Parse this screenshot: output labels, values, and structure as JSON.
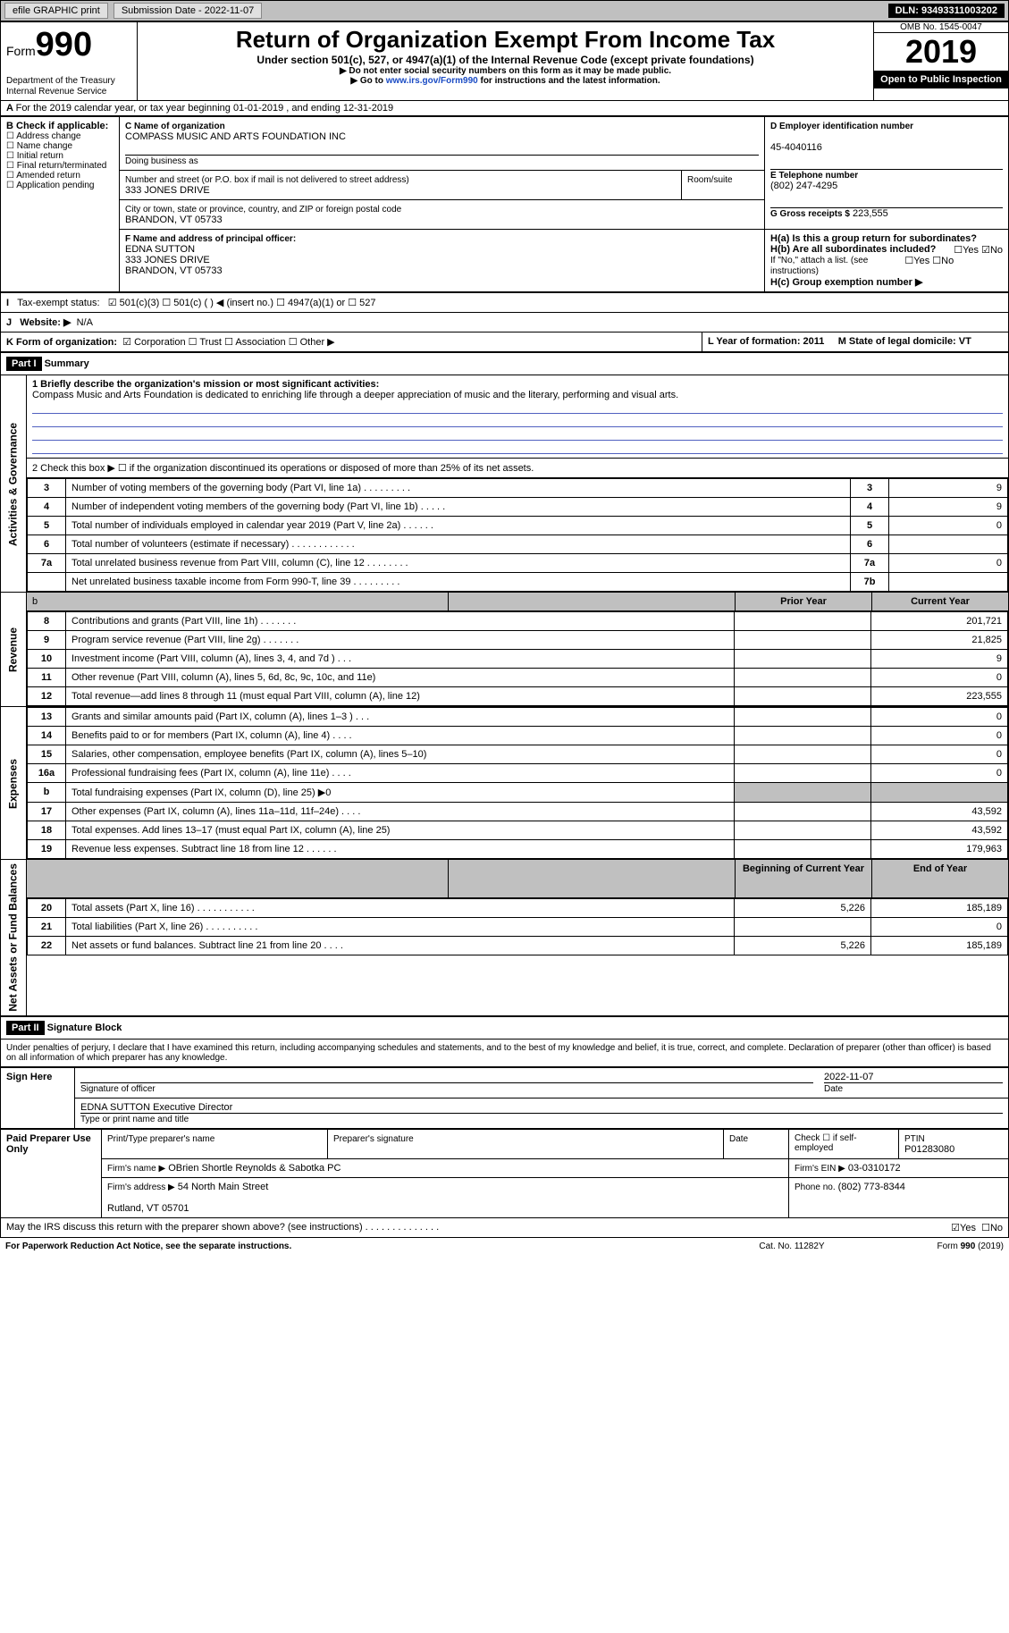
{
  "topbar": {
    "efile_label": "efile GRAPHIC print",
    "submission_label": "Submission Date - 2022-11-07",
    "dln_label": "DLN: 93493311003202"
  },
  "header": {
    "form_prefix": "Form",
    "form_number": "990",
    "dept": "Department of the Treasury\nInternal Revenue Service",
    "title": "Return of Organization Exempt From Income Tax",
    "subtitle": "Under section 501(c), 527, or 4947(a)(1) of the Internal Revenue Code (except private foundations)",
    "note1": "▶ Do not enter social security numbers on this form as it may be made public.",
    "note2_prefix": "▶ Go to ",
    "note2_link": "www.irs.gov/Form990",
    "note2_suffix": " for instructions and the latest information.",
    "omb": "OMB No. 1545-0047",
    "year": "2019",
    "open_public": "Open to Public Inspection"
  },
  "sectionA": {
    "a_line": "For the 2019 calendar year, or tax year beginning 01-01-2019    , and ending 12-31-2019",
    "b_label": "B Check if applicable:",
    "b_items": [
      "Address change",
      "Name change",
      "Initial return",
      "Final return/terminated",
      "Amended return",
      "Application pending"
    ],
    "c_label": "C Name of organization",
    "c_value": "COMPASS MUSIC AND ARTS FOUNDATION INC",
    "dba_label": "Doing business as",
    "addr_label": "Number and street (or P.O. box if mail is not delivered to street address)",
    "room_label": "Room/suite",
    "addr_value": "333 JONES DRIVE",
    "city_label": "City or town, state or province, country, and ZIP or foreign postal code",
    "city_value": "BRANDON, VT  05733",
    "f_label": "F Name and address of principal officer:",
    "f_name": "EDNA SUTTON",
    "f_addr": "333 JONES DRIVE\nBRANDON, VT  05733",
    "d_label": "D Employer identification number",
    "d_value": "45-4040116",
    "e_label": "E Telephone number",
    "e_value": "(802) 247-4295",
    "g_label": "G Gross receipts $",
    "g_value": "223,555",
    "h_a_label": "H(a)  Is this a group return for subordinates?",
    "h_b_label": "H(b)  Are all subordinates included?",
    "h_b_note": "If \"No,\" attach a list. (see instructions)",
    "h_c_label": "H(c)  Group exemption number ▶",
    "yes": "Yes",
    "no": "No"
  },
  "sectionI": {
    "i_label": "I",
    "label": "Tax-exempt status:",
    "opts": [
      "501(c)(3)",
      "501(c) (  ) ◀ (insert no.)",
      "4947(a)(1) or",
      "527"
    ],
    "j": "J",
    "j_label": "Website: ▶",
    "j_value": "N/A",
    "k_label": "K Form of organization:",
    "k_opts": [
      "Corporation",
      "Trust",
      "Association",
      "Other ▶"
    ],
    "l_label": "L Year of formation: 2011",
    "m_label": "M State of legal domicile: VT"
  },
  "part1": {
    "part_label": "Part I",
    "title": "Summary",
    "q1_label": "1  Briefly describe the organization's mission or most significant activities:",
    "q1_value": "Compass Music and Arts Foundation is dedicated to enriching life through a deeper appreciation of music and the literary, performing and visual arts.",
    "q2_label": "2   Check this box ▶ ☐  if the organization discontinued its operations or disposed of more than 25% of its net assets.",
    "lines_gov": [
      {
        "n": "3",
        "text": "Number of voting members of the governing body (Part VI, line 1a)   .    .    .    .    .    .    .    .    .",
        "box": "3",
        "val": "9"
      },
      {
        "n": "4",
        "text": "Number of independent voting members of the governing body (Part VI, line 1b)    .    .    .    .    .",
        "box": "4",
        "val": "9"
      },
      {
        "n": "5",
        "text": "Total number of individuals employed in calendar year 2019 (Part V, line 2a)    .    .    .    .    .    .",
        "box": "5",
        "val": "0"
      },
      {
        "n": "6",
        "text": "Total number of volunteers (estimate if necessary)    .    .    .    .    .    .    .    .    .    .    .    .",
        "box": "6",
        "val": ""
      },
      {
        "n": "7a",
        "text": "Total unrelated business revenue from Part VIII, column (C), line 12    .    .    .    .    .    .    .    .",
        "box": "7a",
        "val": "0"
      },
      {
        "n": "",
        "text": "Net unrelated business taxable income from Form 990-T, line 39    .    .    .    .    .    .    .    .    .",
        "box": "7b",
        "val": ""
      }
    ],
    "pycy_header": {
      "b": "b",
      "prior": "Prior Year",
      "current": "Current Year"
    },
    "revenue_label": "Revenue",
    "expenses_label": "Expenses",
    "netassets_label": "Net Assets or Fund Balances",
    "gov_label": "Activities & Governance",
    "revenue_lines": [
      {
        "n": "8",
        "text": "Contributions and grants (Part VIII, line 1h)    .    .    .    .    .    .    .",
        "py": "",
        "cy": "201,721"
      },
      {
        "n": "9",
        "text": "Program service revenue (Part VIII, line 2g)    .    .    .    .    .    .    .",
        "py": "",
        "cy": "21,825"
      },
      {
        "n": "10",
        "text": "Investment income (Part VIII, column (A), lines 3, 4, and 7d )    .    .    .",
        "py": "",
        "cy": "9"
      },
      {
        "n": "11",
        "text": "Other revenue (Part VIII, column (A), lines 5, 6d, 8c, 9c, 10c, and 11e)",
        "py": "",
        "cy": "0"
      },
      {
        "n": "12",
        "text": "Total revenue—add lines 8 through 11 (must equal Part VIII, column (A), line 12)",
        "py": "",
        "cy": "223,555"
      }
    ],
    "expense_lines": [
      {
        "n": "13",
        "text": "Grants and similar amounts paid (Part IX, column (A), lines 1–3 )    .    .    .",
        "py": "",
        "cy": "0"
      },
      {
        "n": "14",
        "text": "Benefits paid to or for members (Part IX, column (A), line 4)    .    .    .    .",
        "py": "",
        "cy": "0"
      },
      {
        "n": "15",
        "text": "Salaries, other compensation, employee benefits (Part IX, column (A), lines 5–10)",
        "py": "",
        "cy": "0"
      },
      {
        "n": "16a",
        "text": "Professional fundraising fees (Part IX, column (A), line 11e)    .    .    .    .",
        "py": "",
        "cy": "0"
      },
      {
        "n": "b",
        "text": "Total fundraising expenses (Part IX, column (D), line 25) ▶0",
        "py": "gray",
        "cy": "gray"
      },
      {
        "n": "17",
        "text": "Other expenses (Part IX, column (A), lines 11a–11d, 11f–24e)    .    .    .    .",
        "py": "",
        "cy": "43,592"
      },
      {
        "n": "18",
        "text": "Total expenses. Add lines 13–17 (must equal Part IX, column (A), line 25)",
        "py": "",
        "cy": "43,592"
      },
      {
        "n": "19",
        "text": "Revenue less expenses. Subtract line 18 from line 12    .    .    .    .    .    .",
        "py": "",
        "cy": "179,963"
      }
    ],
    "na_header": {
      "begin": "Beginning of Current Year",
      "end": "End of Year"
    },
    "na_lines": [
      {
        "n": "20",
        "text": "Total assets (Part X, line 16)    .    .    .    .    .    .    .    .    .    .    .",
        "py": "5,226",
        "cy": "185,189"
      },
      {
        "n": "21",
        "text": "Total liabilities (Part X, line 26)    .    .    .    .    .    .    .    .    .    .",
        "py": "",
        "cy": "0"
      },
      {
        "n": "22",
        "text": "Net assets or fund balances. Subtract line 21 from line 20    .    .    .    .",
        "py": "5,226",
        "cy": "185,189"
      }
    ]
  },
  "part2": {
    "part_label": "Part II",
    "title": "Signature Block",
    "penalty": "Under penalties of perjury, I declare that I have examined this return, including accompanying schedules and statements, and to the best of my knowledge and belief, it is true, correct, and complete. Declaration of preparer (other than officer) is based on all information of which preparer has any knowledge.",
    "sign_here": "Sign Here",
    "sig_officer": "Signature of officer",
    "sig_date_val": "2022-11-07",
    "date": "Date",
    "officer_name": "EDNA SUTTON  Executive Director",
    "type_name": "Type or print name and title",
    "paid_prep": "Paid Preparer Use Only",
    "prep_name_label": "Print/Type preparer's name",
    "prep_sig_label": "Preparer's signature",
    "date_label": "Date",
    "check_self": "Check ☐ if self-employed",
    "ptin_label": "PTIN",
    "ptin_val": "P01283080",
    "firm_name_label": "Firm's name     ▶",
    "firm_name": "OBrien Shortle Reynolds & Sabotka PC",
    "firm_ein_label": "Firm's EIN ▶",
    "firm_ein": "03-0310172",
    "firm_addr_label": "Firm's address ▶",
    "firm_addr": "54 North Main Street\n\nRutland, VT  05701",
    "phone_label": "Phone no.",
    "phone_val": "(802) 773-8344",
    "may_irs": "May the IRS discuss this return with the preparer shown above? (see instructions)    .    .    .    .    .    .    .    .    .    .    .    .    .    ."
  },
  "footer": {
    "pra": "For Paperwork Reduction Act Notice, see the separate instructions.",
    "catno": "Cat. No. 11282Y",
    "formver": "Form 990 (2019)"
  }
}
